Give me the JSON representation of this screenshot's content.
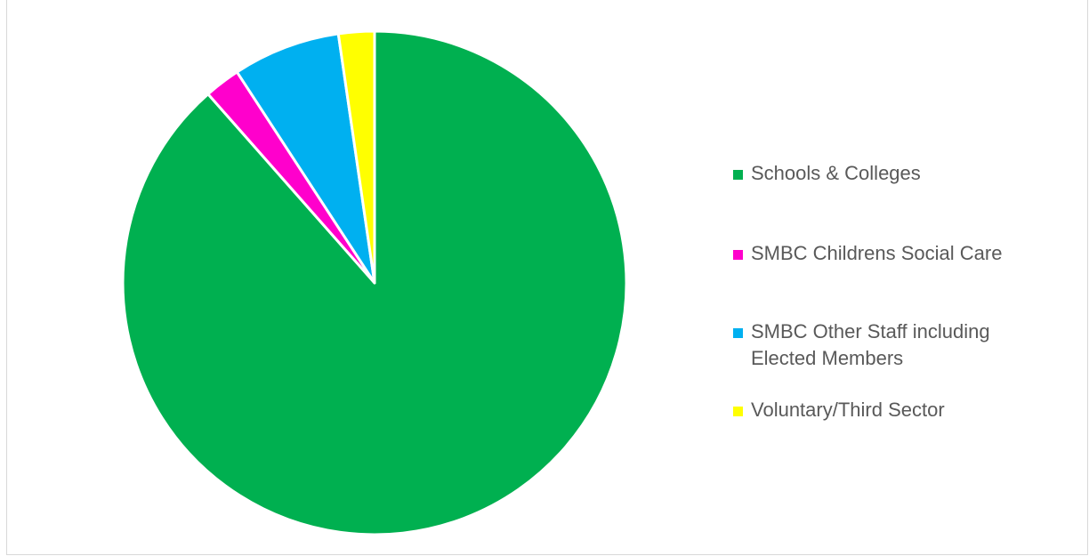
{
  "chart_data": {
    "type": "pie",
    "title": "",
    "start_angle_deg": 0,
    "direction": "clockwise",
    "legend_position": "right",
    "slices": [
      {
        "label": "Schools & Colleges",
        "value": 88.5,
        "color": "#00B050"
      },
      {
        "label": "SMBC Childrens Social Care",
        "value": 2.3,
        "color": "#FF00CC"
      },
      {
        "label": "SMBC Other Staff including Elected Members",
        "value": 6.9,
        "color": "#00B0F0"
      },
      {
        "label": "Voluntary/Third Sector",
        "value": 2.3,
        "color": "#FFFF00"
      }
    ]
  }
}
